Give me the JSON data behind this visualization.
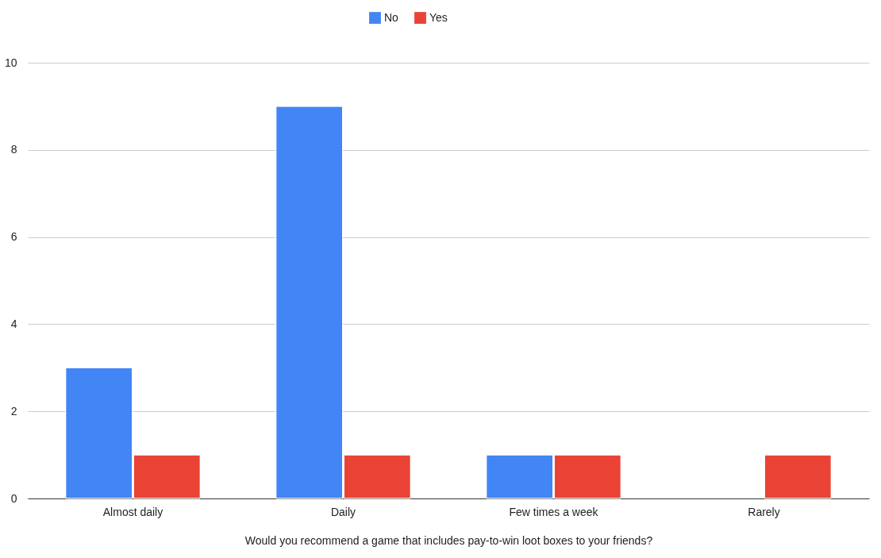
{
  "chart_data": {
    "type": "bar",
    "xlabel": "Would you recommend a game that includes pay-to-win loot boxes to your friends?",
    "categories": [
      "Almost daily",
      "Daily",
      "Few times a week",
      "Rarely"
    ],
    "series": [
      {
        "name": "No",
        "color": "#4285f4",
        "values": [
          3,
          9,
          1,
          null
        ]
      },
      {
        "name": "Yes",
        "color": "#ea4335",
        "values": [
          1,
          1,
          1,
          1
        ]
      }
    ],
    "ylim": [
      0,
      10
    ],
    "yticks": [
      0,
      2,
      4,
      6,
      8,
      10
    ],
    "grid": "y",
    "legend": "top"
  }
}
